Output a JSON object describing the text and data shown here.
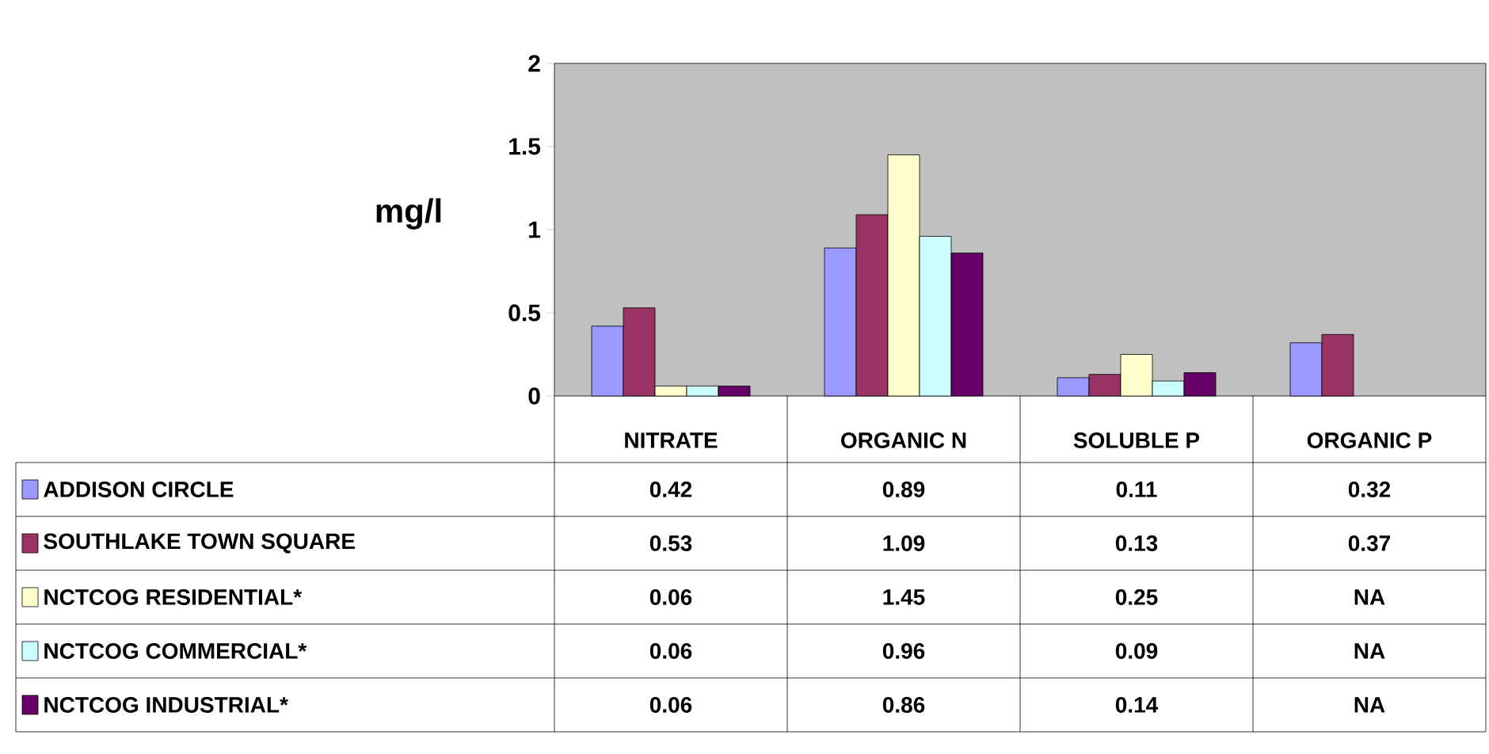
{
  "chart_data": {
    "type": "bar",
    "ylabel": "mg/l",
    "categories": [
      "NITRATE",
      "ORGANIC N",
      "SOLUBLE P",
      "ORGANIC P"
    ],
    "series": [
      {
        "name": "ADDISON CIRCLE",
        "color": "#9999ff",
        "values": [
          0.42,
          0.89,
          0.11,
          0.32
        ],
        "value_labels": [
          "0.42",
          "0.89",
          "0.11",
          "0.32"
        ]
      },
      {
        "name": "SOUTHLAKE TOWN SQUARE",
        "color": "#993366",
        "values": [
          0.53,
          1.09,
          0.13,
          0.37
        ],
        "value_labels": [
          "0.53",
          "1.09",
          "0.13",
          "0.37"
        ]
      },
      {
        "name": "NCTCOG RESIDENTIAL*",
        "color": "#ffffcc",
        "values": [
          0.06,
          1.45,
          0.25,
          null
        ],
        "value_labels": [
          "0.06",
          "1.45",
          "0.25",
          "NA"
        ]
      },
      {
        "name": "NCTCOG COMMERCIAL*",
        "color": "#ccffff",
        "values": [
          0.06,
          0.96,
          0.09,
          null
        ],
        "value_labels": [
          "0.06",
          "0.96",
          "0.09",
          "NA"
        ]
      },
      {
        "name": "NCTCOG INDUSTRIAL*",
        "color": "#660066",
        "values": [
          0.06,
          0.86,
          0.14,
          null
        ],
        "value_labels": [
          "0.06",
          "0.86",
          "0.14",
          "NA"
        ]
      }
    ],
    "ylim": [
      0,
      2
    ],
    "yticks": [
      0,
      0.5,
      1,
      1.5,
      2
    ],
    "legend": "bottom"
  }
}
